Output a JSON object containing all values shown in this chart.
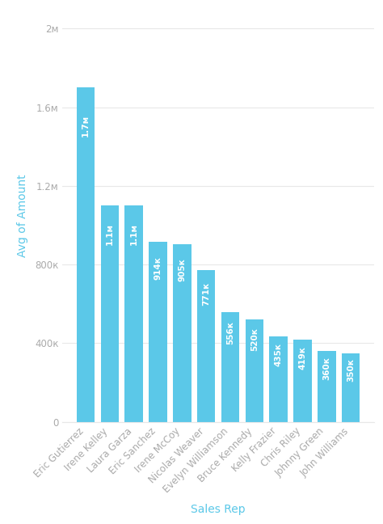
{
  "categories": [
    "Eric Gutierrez",
    "Irene Kelley",
    "Laura Garza",
    "Eric Sanchez",
    "Irene McCoy",
    "Nicolas Weaver",
    "Evelyn Williamson",
    "Bruce Kennedy",
    "Kelly Frazier",
    "Chris Riley",
    "Johnny Green",
    "John Williams"
  ],
  "values": [
    1700000,
    1100000,
    1100000,
    914000,
    905000,
    771000,
    556000,
    520000,
    435000,
    419000,
    360000,
    350000
  ],
  "labels": [
    "1.7м",
    "1.1м",
    "1.1м",
    "914к",
    "905к",
    "771к",
    "556к",
    "520к",
    "435к",
    "419к",
    "360к",
    "350к"
  ],
  "bar_color": "#5BC8E8",
  "background_color": "#FFFFFF",
  "ylabel": "Avg of Amount",
  "xlabel": "Sales Rep",
  "yticks": [
    0,
    400000,
    800000,
    1200000,
    1600000,
    2000000
  ],
  "ytick_labels": [
    "0",
    "400к",
    "800к",
    "1.2м",
    "1.6м",
    "2м"
  ],
  "ylim": [
    0,
    2100000
  ],
  "label_fontsize": 7.5,
  "axis_label_fontsize": 10,
  "tick_fontsize": 8.5,
  "label_color": "#FFFFFF",
  "grid_color": "#E8E8E8",
  "tick_color": "#AAAAAA"
}
